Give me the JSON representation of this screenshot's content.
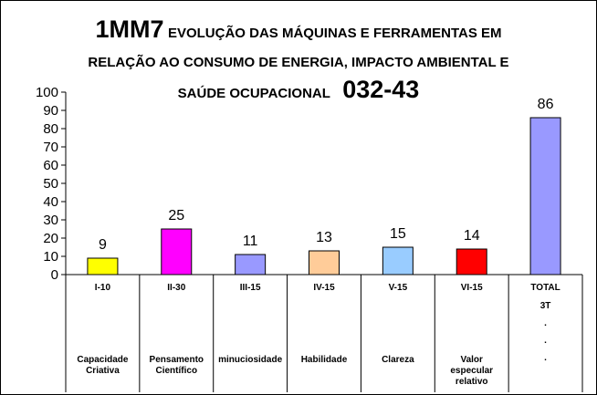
{
  "title": {
    "code1": "1MM7",
    "line1": "EVOLUÇÃO DAS MÁQUINAS E FERRAMENTAS EM",
    "line2": "RELAÇÃO AO CONSUMO DE ENERGIA, IMPACTO AMBIENTAL E",
    "line3": "SAÚDE OCUPACIONAL",
    "code2": "032-43"
  },
  "chart_data": {
    "type": "bar",
    "ylim": [
      0,
      100
    ],
    "yticks": [
      0,
      10,
      20,
      30,
      40,
      50,
      60,
      70,
      80,
      90,
      100
    ],
    "grid": false,
    "categories": [
      {
        "code": "I-10",
        "label": [
          "Capacidade",
          "Criativa"
        ]
      },
      {
        "code": "II-30",
        "label": [
          "Pensamento",
          "Científico"
        ]
      },
      {
        "code": "III-15",
        "label": [
          "minuciosidade"
        ]
      },
      {
        "code": "IV-15",
        "label": [
          "Habilidade"
        ]
      },
      {
        "code": "V-15",
        "label": [
          "Clareza"
        ]
      },
      {
        "code": "VI-15",
        "label": [
          "Valor",
          "especular",
          "relativo"
        ]
      },
      {
        "code": "TOTAL",
        "label": [
          "3T",
          ".",
          ".",
          "."
        ]
      }
    ],
    "values": [
      9,
      25,
      11,
      13,
      15,
      14,
      86
    ],
    "colors": [
      "#ffff00",
      "#ff00ff",
      "#9999ff",
      "#ffcc99",
      "#99ccff",
      "#ff0000",
      "#9999ff"
    ]
  }
}
